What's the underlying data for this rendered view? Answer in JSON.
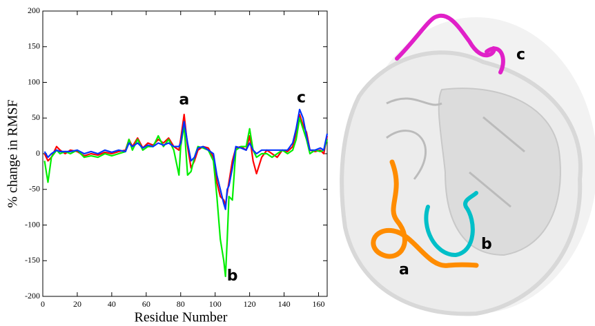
{
  "chart_data": {
    "type": "line",
    "xlabel": "Residue Number",
    "ylabel": "% change in RMSF",
    "x": [
      1,
      3,
      5,
      8,
      10,
      13,
      16,
      20,
      24,
      28,
      32,
      36,
      40,
      44,
      48,
      50,
      52,
      55,
      58,
      61,
      64,
      67,
      70,
      73,
      76,
      79,
      80,
      82,
      84,
      86,
      88,
      90,
      93,
      96,
      99,
      101,
      103,
      105,
      106,
      107,
      108,
      110,
      112,
      115,
      118,
      120,
      122,
      124,
      127,
      130,
      133,
      136,
      139,
      142,
      145,
      147,
      149,
      151,
      153,
      155,
      158,
      161,
      163,
      165
    ],
    "series": [
      {
        "color": "#ff0000",
        "values": [
          0,
          -10,
          -5,
          10,
          5,
          0,
          5,
          3,
          -3,
          0,
          -2,
          2,
          0,
          3,
          5,
          20,
          10,
          22,
          8,
          15,
          12,
          20,
          15,
          22,
          10,
          5,
          20,
          55,
          10,
          -20,
          -10,
          5,
          10,
          8,
          -5,
          -40,
          -60,
          -65,
          -72,
          -55,
          -40,
          -10,
          8,
          10,
          5,
          25,
          -10,
          -28,
          -5,
          5,
          0,
          -5,
          5,
          3,
          10,
          30,
          55,
          40,
          30,
          5,
          3,
          5,
          0,
          25
        ]
      },
      {
        "color": "#00ee00",
        "values": [
          -10,
          -40,
          -5,
          5,
          0,
          3,
          0,
          5,
          -5,
          -3,
          -5,
          0,
          -3,
          0,
          3,
          20,
          5,
          20,
          5,
          10,
          10,
          25,
          10,
          20,
          5,
          -30,
          10,
          40,
          -30,
          -25,
          -5,
          10,
          8,
          5,
          -10,
          -60,
          -120,
          -150,
          -172,
          -120,
          -60,
          -65,
          5,
          10,
          10,
          35,
          5,
          -5,
          0,
          0,
          -5,
          0,
          5,
          0,
          5,
          20,
          50,
          35,
          20,
          0,
          5,
          3,
          5,
          20
        ]
      },
      {
        "color": "#0033ff",
        "values": [
          3,
          -5,
          0,
          5,
          3,
          3,
          3,
          5,
          0,
          3,
          0,
          5,
          2,
          5,
          3,
          15,
          10,
          15,
          8,
          12,
          10,
          15,
          12,
          15,
          10,
          10,
          15,
          45,
          15,
          -10,
          -5,
          8,
          10,
          5,
          0,
          -30,
          -50,
          -70,
          -78,
          -50,
          -45,
          -20,
          10,
          8,
          5,
          15,
          5,
          0,
          5,
          5,
          5,
          5,
          5,
          5,
          15,
          35,
          62,
          50,
          25,
          5,
          5,
          8,
          5,
          28
        ]
      }
    ],
    "xlim": [
      0,
      165
    ],
    "xticks": [
      0,
      20,
      40,
      60,
      80,
      100,
      120,
      140,
      160
    ],
    "ylim": [
      -200,
      200
    ],
    "yticks": [
      -200,
      -150,
      -100,
      -50,
      0,
      50,
      100,
      150,
      200
    ],
    "annotations": [
      {
        "text": "a",
        "x": 82,
        "y": 75
      },
      {
        "text": "b",
        "x": 110,
        "y": -172
      },
      {
        "text": "c",
        "x": 150,
        "y": 78
      }
    ]
  },
  "structure": {
    "labels": [
      "c",
      "b",
      "a"
    ]
  }
}
